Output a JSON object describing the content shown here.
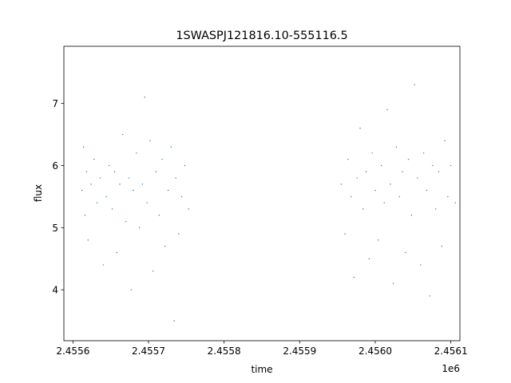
{
  "chart_data": {
    "type": "scatter",
    "title": "1SWASPJ121816.10-555116.5",
    "xlabel": "time",
    "ylabel": "flux",
    "x_offset_label": "1e6",
    "x_tick_labels": [
      "2.4556",
      "2.4557",
      "2.4558",
      "2.4559",
      "2.4560",
      "2.4561"
    ],
    "x_tick_values": [
      2455600,
      2455700,
      2455800,
      2455900,
      2456000,
      2456100
    ],
    "y_tick_labels": [
      "4",
      "5",
      "6",
      "7"
    ],
    "y_tick_values": [
      4,
      5,
      6,
      7
    ],
    "xlim": [
      2455588,
      2456112
    ],
    "ylim": [
      3.18,
      7.92
    ],
    "grid": false,
    "marker_color": "#1f77b4",
    "series": [
      {
        "points": [
          [
            2455612,
            5.6
          ],
          [
            2455614,
            6.3
          ],
          [
            2455616,
            5.2
          ],
          [
            2455618,
            5.9
          ],
          [
            2455620,
            4.8
          ],
          [
            2455624,
            5.7
          ],
          [
            2455628,
            6.1
          ],
          [
            2455632,
            5.4
          ],
          [
            2455636,
            5.8
          ],
          [
            2455640,
            4.4
          ],
          [
            2455644,
            5.5
          ],
          [
            2455648,
            6.0
          ],
          [
            2455652,
            5.3
          ],
          [
            2455655,
            5.9
          ],
          [
            2455658,
            4.6
          ],
          [
            2455662,
            5.7
          ],
          [
            2455666,
            6.5
          ],
          [
            2455670,
            5.1
          ],
          [
            2455674,
            5.8
          ],
          [
            2455677,
            4.0
          ],
          [
            2455680,
            5.6
          ],
          [
            2455684,
            6.2
          ],
          [
            2455688,
            5.0
          ],
          [
            2455692,
            5.7
          ],
          [
            2455695,
            7.1
          ],
          [
            2455698,
            5.4
          ],
          [
            2455702,
            6.4
          ],
          [
            2455706,
            4.3
          ],
          [
            2455710,
            5.9
          ],
          [
            2455714,
            5.2
          ],
          [
            2455718,
            6.1
          ],
          [
            2455722,
            4.7
          ],
          [
            2455726,
            5.6
          ],
          [
            2455730,
            6.3
          ],
          [
            2455734,
            3.5
          ],
          [
            2455736,
            5.8
          ],
          [
            2455740,
            4.9
          ],
          [
            2455744,
            5.5
          ],
          [
            2455748,
            6.0
          ],
          [
            2455753,
            5.3
          ],
          [
            2455955,
            5.7
          ],
          [
            2455960,
            4.9
          ],
          [
            2455964,
            6.1
          ],
          [
            2455968,
            5.5
          ],
          [
            2455972,
            4.2
          ],
          [
            2455976,
            5.8
          ],
          [
            2455980,
            6.6
          ],
          [
            2455984,
            5.3
          ],
          [
            2455988,
            5.9
          ],
          [
            2455992,
            4.5
          ],
          [
            2455996,
            6.2
          ],
          [
            2456000,
            5.6
          ],
          [
            2456004,
            4.8
          ],
          [
            2456008,
            6.0
          ],
          [
            2456012,
            5.4
          ],
          [
            2456016,
            6.9
          ],
          [
            2456020,
            5.7
          ],
          [
            2456024,
            4.1
          ],
          [
            2456028,
            6.3
          ],
          [
            2456032,
            5.5
          ],
          [
            2456036,
            5.9
          ],
          [
            2456040,
            4.6
          ],
          [
            2456044,
            6.1
          ],
          [
            2456048,
            5.2
          ],
          [
            2456052,
            7.3
          ],
          [
            2456056,
            5.8
          ],
          [
            2456060,
            4.4
          ],
          [
            2456064,
            6.2
          ],
          [
            2456068,
            5.6
          ],
          [
            2456072,
            3.9
          ],
          [
            2456076,
            6.0
          ],
          [
            2456080,
            5.3
          ],
          [
            2456084,
            5.9
          ],
          [
            2456088,
            4.7
          ],
          [
            2456092,
            6.4
          ],
          [
            2456096,
            5.5
          ],
          [
            2456100,
            6.0
          ],
          [
            2456106,
            5.4
          ]
        ]
      }
    ]
  }
}
